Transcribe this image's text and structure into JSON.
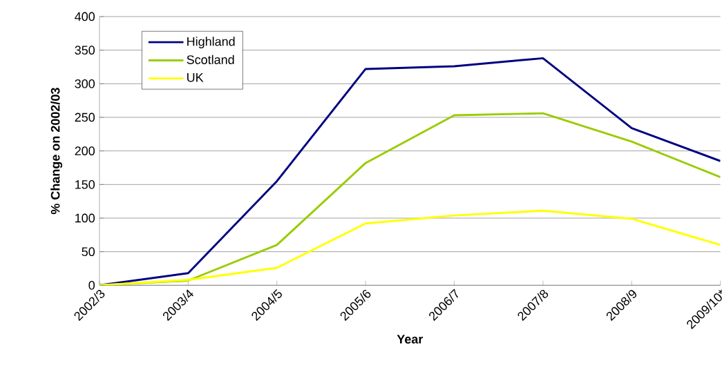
{
  "chart_data": {
    "type": "line",
    "xlabel": "Year",
    "ylabel": "% Change on 2002/03",
    "categories": [
      "2002/3",
      "2003/4",
      "2004/5",
      "2005/6",
      "2006/7",
      "2007/8",
      "2008/9",
      "2009/10*"
    ],
    "series": [
      {
        "name": "Highland",
        "color": "#000080",
        "values": [
          0,
          18,
          155,
          322,
          326,
          338,
          234,
          185
        ]
      },
      {
        "name": "Scotland",
        "color": "#99cc00",
        "values": [
          0,
          7,
          60,
          182,
          253,
          256,
          214,
          161
        ]
      },
      {
        "name": "UK",
        "color": "#ffff00",
        "values": [
          0,
          8,
          26,
          92,
          104,
          111,
          99,
          60
        ]
      }
    ],
    "ylim": [
      0,
      400
    ],
    "yticks": [
      0,
      50,
      100,
      150,
      200,
      250,
      300,
      350,
      400
    ],
    "grid": "y",
    "legend": "top left",
    "marker": "none",
    "line_style": "solid"
  }
}
